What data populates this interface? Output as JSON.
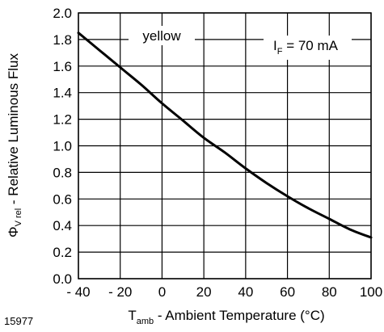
{
  "figure_number": "15977",
  "chart_data": {
    "type": "line",
    "xlim": [
      -40,
      100
    ],
    "ylim": [
      0.0,
      2.0
    ],
    "x_ticks": [
      "- 40",
      "- 20",
      "0",
      "20",
      "40",
      "60",
      "80",
      "100"
    ],
    "y_ticks": [
      "0.0",
      "0.2",
      "0.4",
      "0.6",
      "0.8",
      "1.0",
      "1.2",
      "1.4",
      "1.6",
      "1.8",
      "2.0"
    ],
    "grid": true,
    "xlabel": {
      "symbol": "T",
      "subscript": "amb",
      "text": " - Ambient Temperature (°C)"
    },
    "ylabel": {
      "symbol": "Φ",
      "subscript": "V rel",
      "text": " - Relative Luminous Flux"
    },
    "annotations": [
      {
        "label": "yellow"
      },
      {
        "symbol": "I",
        "subscript": "F",
        "text": " = 70 mA"
      }
    ],
    "series": [
      {
        "x": [
          -40,
          -30,
          -20,
          -10,
          0,
          10,
          20,
          30,
          40,
          50,
          60,
          70,
          80,
          90,
          100
        ],
        "y": [
          1.85,
          1.72,
          1.59,
          1.46,
          1.32,
          1.19,
          1.06,
          0.95,
          0.83,
          0.72,
          0.62,
          0.53,
          0.45,
          0.37,
          0.31
        ]
      }
    ]
  }
}
